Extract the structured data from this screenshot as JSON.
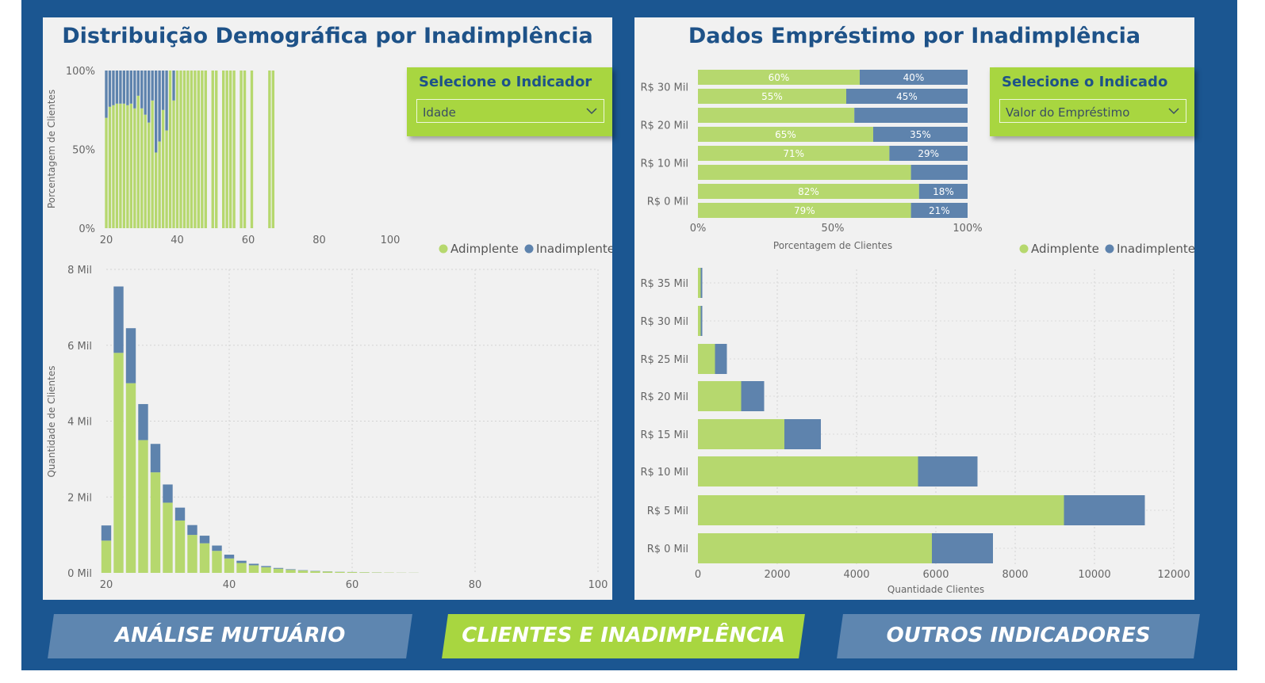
{
  "colors": {
    "frame": "#1b5691",
    "panel": "#f1f1f1",
    "adimplente": "#b6d86e",
    "inadimplente": "#5e83ad",
    "title": "#1e5288",
    "slicer": "#a8d640"
  },
  "left_panel": {
    "title": "Distribuição Demográfica por Inadimplência",
    "slicer": {
      "title": "Selecione o Indicador",
      "value": "Idade",
      "icon": "chevron-down-icon"
    }
  },
  "right_panel": {
    "title": "Dados Empréstimo por Inadimplência",
    "slicer": {
      "title": "Selecione o Indicado",
      "value": "Valor do Empréstimo",
      "icon": "chevron-down-icon"
    }
  },
  "nav": {
    "analise": "ANÁLISE MUTUÁRIO",
    "clientes": "CLIENTES E INADIMPLÊNCIA",
    "outros": "OUTROS INDICADORES"
  },
  "chart_data": [
    {
      "type": "bar",
      "stacked": "percent",
      "ylabel": "Porcentagem de Clientes",
      "xlim": [
        20,
        100
      ],
      "xticks": [
        20,
        40,
        60,
        80,
        100
      ],
      "yticks": [
        "0%",
        "50%",
        "100%"
      ],
      "x": [
        20,
        21,
        22,
        23,
        24,
        25,
        26,
        27,
        28,
        29,
        30,
        31,
        32,
        33,
        34,
        35,
        36,
        37,
        38,
        39,
        40,
        41,
        42,
        43,
        44,
        45,
        46,
        47,
        48,
        50,
        51,
        53,
        54,
        55,
        56,
        58,
        59,
        61,
        66,
        67
      ],
      "series": [
        {
          "name": "Adimplente",
          "values": [
            0.7,
            0.77,
            0.78,
            0.79,
            0.79,
            0.79,
            0.78,
            0.79,
            0.76,
            0.84,
            0.76,
            0.72,
            0.67,
            0.81,
            0.48,
            0.55,
            0.75,
            0.62,
            1.0,
            0.81,
            1.0,
            1.0,
            1.0,
            1.0,
            1.0,
            1.0,
            1.0,
            1.0,
            1.0,
            1.0,
            1.0,
            1.0,
            1.0,
            1.0,
            1.0,
            1.0,
            1.0,
            1.0,
            1.0,
            1.0
          ]
        },
        {
          "name": "Inadimplente",
          "values": [
            0.3,
            0.23,
            0.22,
            0.21,
            0.21,
            0.21,
            0.22,
            0.21,
            0.24,
            0.16,
            0.24,
            0.28,
            0.33,
            0.19,
            0.52,
            0.45,
            0.25,
            0.38,
            0.0,
            0.19,
            0,
            0,
            0,
            0,
            0,
            0,
            0,
            0,
            0,
            0,
            0,
            0,
            0,
            0,
            0,
            0,
            0,
            0,
            0,
            0
          ]
        }
      ],
      "legend": {
        "position": "bottom-right",
        "labels": [
          "Adimplente",
          "Inadimplente"
        ]
      }
    },
    {
      "type": "bar",
      "stacked": "count",
      "ylabel": "Quantidade de Clientes",
      "xlim": [
        20,
        100
      ],
      "ylim": [
        0,
        8000
      ],
      "xticks": [
        20,
        40,
        60,
        80,
        100
      ],
      "yticks": [
        "0 Mil",
        "2 Mil",
        "4 Mil",
        "6 Mil",
        "8 Mil"
      ],
      "x": [
        20,
        22,
        24,
        26,
        28,
        30,
        32,
        34,
        36,
        38,
        40,
        42,
        44,
        46,
        48,
        50,
        52,
        54,
        56,
        58,
        60,
        62,
        64,
        66,
        68,
        70
      ],
      "series": [
        {
          "name": "Adimplente",
          "values": [
            850,
            5800,
            5000,
            3500,
            2650,
            1850,
            1380,
            1000,
            780,
            580,
            380,
            260,
            200,
            150,
            110,
            80,
            60,
            45,
            35,
            25,
            20,
            15,
            10,
            8,
            5,
            4
          ]
        },
        {
          "name": "Inadimplente",
          "values": [
            400,
            1750,
            1450,
            950,
            750,
            480,
            340,
            260,
            200,
            140,
            100,
            60,
            40,
            30,
            20,
            15,
            10,
            8,
            5,
            4,
            3,
            2,
            2,
            1,
            1,
            1
          ]
        }
      ]
    },
    {
      "type": "bar",
      "orientation": "horizontal",
      "stacked": "percent",
      "xlabel": "Porcentagem de Clientes",
      "xticks": [
        "0%",
        "50%",
        "100%"
      ],
      "categories": [
        "R$ 35 Mil",
        "R$ 30 Mil",
        "R$ 25 Mil",
        "R$ 20 Mil",
        "R$ 15 Mil",
        "R$ 10 Mil",
        "R$ 5 Mil",
        "R$ 0 Mil"
      ],
      "ytick_labels": [
        "R$ 30 Mil",
        "R$ 20 Mil",
        "R$ 10 Mil",
        "R$ 0 Mil"
      ],
      "series": [
        {
          "name": "Adimplente",
          "values": [
            0.6,
            0.55,
            0.58,
            0.65,
            0.71,
            0.79,
            0.82,
            0.79
          ],
          "labels": [
            "60%",
            "55%",
            "",
            "65%",
            "71%",
            "",
            "82%",
            "79%"
          ]
        },
        {
          "name": "Inadimplente",
          "values": [
            0.4,
            0.45,
            0.42,
            0.35,
            0.29,
            0.21,
            0.18,
            0.21
          ],
          "labels": [
            "40%",
            "45%",
            "",
            "35%",
            "29%",
            "",
            "18%",
            "21%"
          ]
        }
      ],
      "legend": {
        "position": "bottom-right",
        "labels": [
          "Adimplente",
          "Inadimplente"
        ]
      }
    },
    {
      "type": "bar",
      "orientation": "horizontal",
      "stacked": "count",
      "xlabel": "Quantidade Clientes",
      "xlim": [
        0,
        12000
      ],
      "xticks": [
        "0",
        "2000",
        "4000",
        "6000",
        "8000",
        "10000",
        "12000"
      ],
      "categories": [
        "R$ 35 Mil",
        "R$ 30 Mil",
        "R$ 25 Mil",
        "R$ 20 Mil",
        "R$ 15 Mil",
        "R$ 10 Mil",
        "R$ 5 Mil",
        "R$ 0 Mil"
      ],
      "series": [
        {
          "name": "Adimplente",
          "values": [
            70,
            70,
            430,
            1090,
            2180,
            5550,
            9230,
            5900
          ]
        },
        {
          "name": "Inadimplente",
          "values": [
            40,
            40,
            300,
            580,
            920,
            1500,
            2040,
            1540
          ]
        }
      ]
    }
  ]
}
